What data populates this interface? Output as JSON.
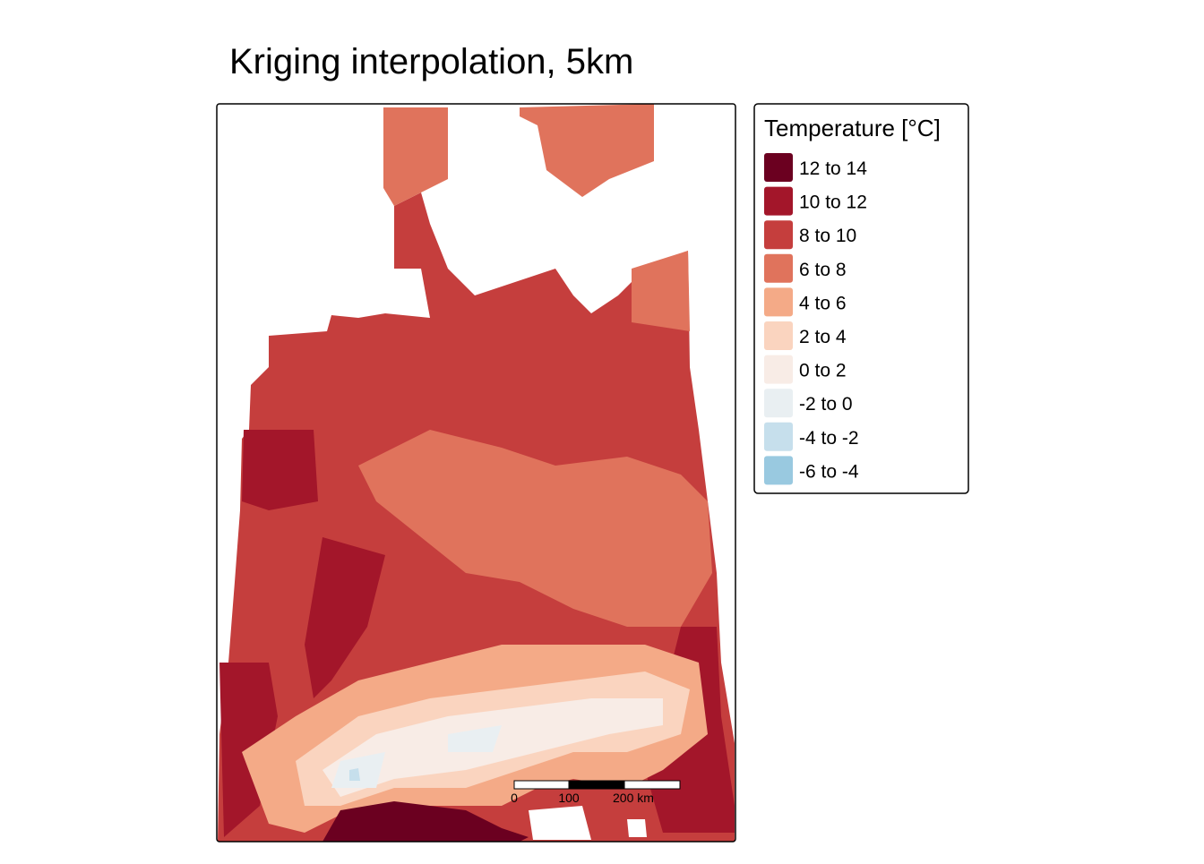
{
  "title": "Kriging interpolation, 5km",
  "legend": {
    "title": "Temperature [°C]",
    "items": [
      {
        "label": "12 to 14",
        "color": "#6b0020"
      },
      {
        "label": "10 to 12",
        "color": "#a3162a"
      },
      {
        "label": "8 to 10",
        "color": "#c53e3d"
      },
      {
        "label": "6 to 8",
        "color": "#e0735c"
      },
      {
        "label": "4 to 6",
        "color": "#f4aa87"
      },
      {
        "label": "2 to 4",
        "color": "#fad4bf"
      },
      {
        "label": "0 to 2",
        "color": "#f8ece6"
      },
      {
        "label": "-2 to 0",
        "color": "#e9eff2"
      },
      {
        "label": "-4 to -2",
        "color": "#c6dfec"
      },
      {
        "label": "-6 to -4",
        "color": "#99c9e0"
      }
    ]
  },
  "scale_bar": {
    "labels": [
      "0",
      "100",
      "200 km"
    ]
  }
}
